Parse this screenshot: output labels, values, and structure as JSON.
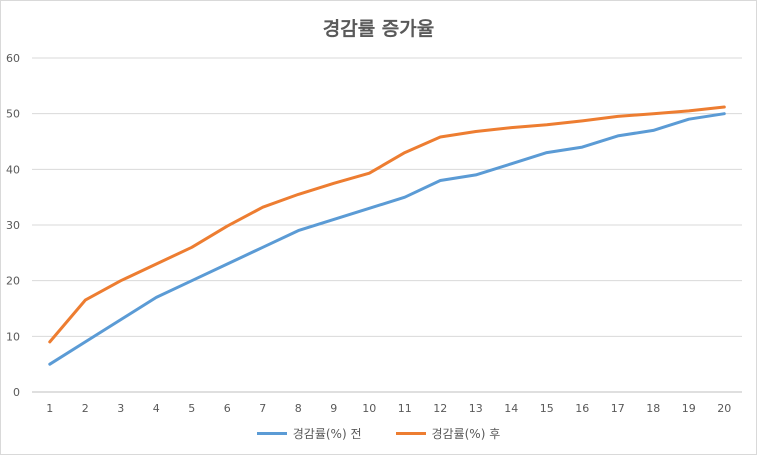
{
  "chart_data": {
    "type": "line",
    "title": "경감률 증가율",
    "xlabel": "",
    "ylabel": "",
    "x": [
      1,
      2,
      3,
      4,
      5,
      6,
      7,
      8,
      9,
      10,
      11,
      12,
      13,
      14,
      15,
      16,
      17,
      18,
      19,
      20
    ],
    "ylim": [
      0,
      60
    ],
    "yticks": [
      0,
      10,
      20,
      30,
      40,
      50,
      60
    ],
    "grid": true,
    "legend_position": "bottom",
    "series": [
      {
        "name": "경감률(%) 전",
        "color": "#5b9bd5",
        "values": [
          5,
          9,
          13,
          17,
          20,
          23,
          26,
          29,
          31,
          33,
          35,
          38,
          39,
          41,
          43,
          44,
          46,
          47,
          49,
          50
        ]
      },
      {
        "name": "경감률(%) 후",
        "color": "#ed7d31",
        "values": [
          9,
          16.5,
          20,
          23,
          26,
          29.8,
          33.2,
          35.5,
          37.5,
          39.3,
          43,
          45.8,
          46.8,
          47.5,
          48,
          48.7,
          49.5,
          50,
          50.5,
          51.2
        ]
      }
    ]
  }
}
